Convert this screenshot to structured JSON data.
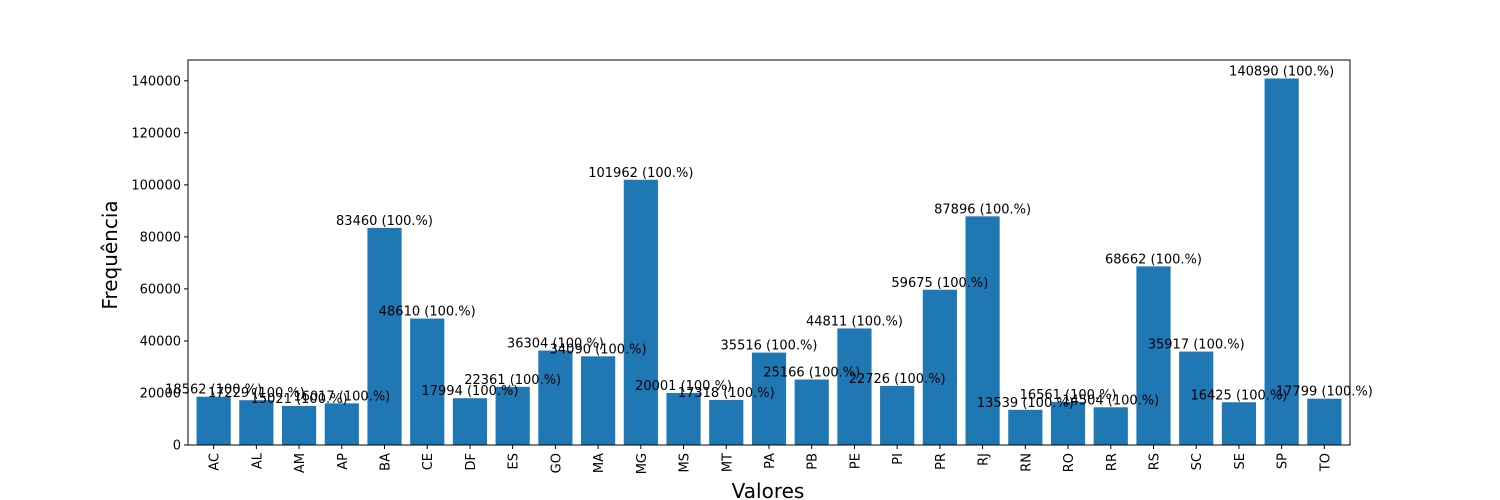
{
  "chart_data": {
    "type": "bar",
    "title": "",
    "xlabel": "Valores",
    "ylabel": "Frequência",
    "ylim": [
      0,
      148000
    ],
    "yticks": [
      0,
      20000,
      40000,
      60000,
      80000,
      100000,
      120000,
      140000
    ],
    "bar_color": "#1f77b4",
    "grid": false,
    "legend": "none",
    "categories": [
      "AC",
      "AL",
      "AM",
      "AP",
      "BA",
      "CE",
      "DF",
      "ES",
      "GO",
      "MA",
      "MG",
      "MS",
      "MT",
      "PA",
      "PB",
      "PE",
      "PI",
      "PR",
      "RJ",
      "RN",
      "RO",
      "RR",
      "RS",
      "SC",
      "SE",
      "SP",
      "TO"
    ],
    "values": [
      18562,
      17229,
      15021,
      16017,
      83460,
      48610,
      17994,
      22361,
      36304,
      34090,
      101962,
      20001,
      17318,
      35516,
      25166,
      44811,
      22726,
      59675,
      87896,
      13539,
      16561,
      14504,
      68662,
      35917,
      16425,
      140890,
      17799
    ],
    "data_labels": [
      "18562 (100.%)",
      "17229 (100.%)",
      "15021 (100.%)",
      "16017 (100.%)",
      "83460 (100.%)",
      "48610 (100.%)",
      "17994 (100.%)",
      "22361 (100.%)",
      "36304 (100.%)",
      "34090 (100.%)",
      "101962 (100.%)",
      "20001 (100.%)",
      "17318 (100.%)",
      "35516 (100.%)",
      "25166 (100.%)",
      "44811 (100.%)",
      "22726 (100.%)",
      "59675 (100.%)",
      "87896 (100.%)",
      "13539 (100.%)",
      "16561 (100.%)",
      "14504 (100.%)",
      "68662 (100.%)",
      "35917 (100.%)",
      "16425 (100.%)",
      "140890 (100.%)",
      "17799 (100.%)"
    ]
  }
}
